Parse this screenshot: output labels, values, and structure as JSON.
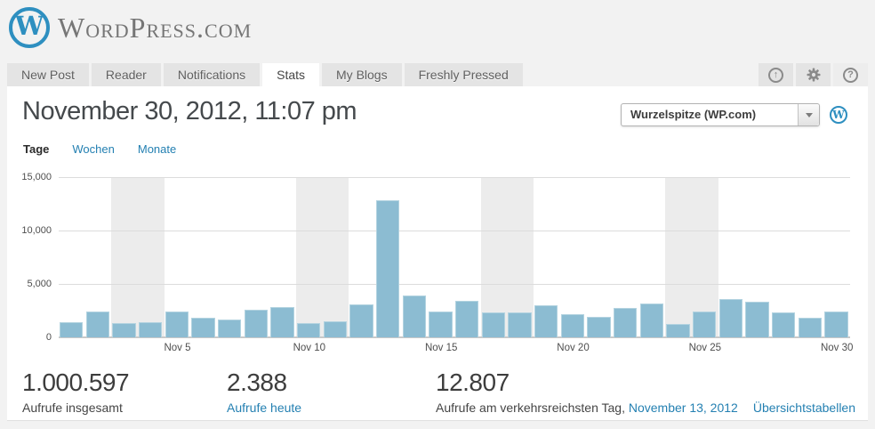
{
  "header": {
    "logo_initial": "W",
    "logo_text": "WordPress.com",
    "nav_tabs": [
      {
        "label": "New Post",
        "active": false
      },
      {
        "label": "Reader",
        "active": false
      },
      {
        "label": "Notifications",
        "active": false
      },
      {
        "label": "Stats",
        "active": true
      },
      {
        "label": "My Blogs",
        "active": false
      },
      {
        "label": "Freshly Pressed",
        "active": false
      }
    ],
    "icon_buttons": [
      "publish-icon",
      "gear-icon",
      "help-icon"
    ],
    "publish_glyph": "↑",
    "help_glyph": "?"
  },
  "page": {
    "title": "November 30, 2012, 11:07 pm",
    "blog_selector": {
      "value": "Wurzelspitze (WP.com)"
    },
    "view_tabs": [
      {
        "label": "Tage",
        "active": true
      },
      {
        "label": "Wochen",
        "active": false
      },
      {
        "label": "Monate",
        "active": false
      }
    ]
  },
  "chart_data": {
    "type": "bar",
    "title": "Views per day, November 2012",
    "xlabel": "",
    "ylabel": "",
    "categories": [
      "Nov 1",
      "Nov 2",
      "Nov 3",
      "Nov 4",
      "Nov 5",
      "Nov 6",
      "Nov 7",
      "Nov 8",
      "Nov 9",
      "Nov 10",
      "Nov 11",
      "Nov 12",
      "Nov 13",
      "Nov 14",
      "Nov 15",
      "Nov 16",
      "Nov 17",
      "Nov 18",
      "Nov 19",
      "Nov 20",
      "Nov 21",
      "Nov 22",
      "Nov 23",
      "Nov 24",
      "Nov 25",
      "Nov 26",
      "Nov 27",
      "Nov 28",
      "Nov 29",
      "Nov 30"
    ],
    "values": [
      1450,
      2450,
      1300,
      1450,
      2450,
      1800,
      1700,
      2550,
      2800,
      1350,
      1500,
      3100,
      12807,
      3900,
      2400,
      3400,
      2350,
      2300,
      3000,
      2200,
      1950,
      2750,
      3200,
      1250,
      2400,
      3550,
      3300,
      2350,
      1800,
      2388
    ],
    "ylim": [
      0,
      15000
    ],
    "ytick_values": [
      0,
      5000,
      10000,
      15000
    ],
    "ytick_labels": [
      "0",
      "5,000",
      "10,000",
      "15,000"
    ],
    "xtick_days": [
      5,
      10,
      15,
      20,
      25,
      30
    ],
    "xtick_labels": [
      "Nov 5",
      "Nov 10",
      "Nov 15",
      "Nov 20",
      "Nov 25",
      "Nov 30"
    ],
    "weekend_bands_days": [
      [
        3,
        4
      ],
      [
        10,
        11
      ],
      [
        17,
        18
      ],
      [
        24,
        25
      ]
    ],
    "grid": true,
    "legend": false,
    "bar_color": "#8cbcd2",
    "bar_border_color": "#b3d3e0",
    "band_color": "#ececec"
  },
  "summary": [
    {
      "value": "1.000.597",
      "label": "Aufrufe insgesamt"
    },
    {
      "value": "2.388",
      "label": "Aufrufe heute"
    },
    {
      "value": "12.807",
      "label_prefix": "Aufrufe am verkehrsreichsten Tag, ",
      "label_link": "November 13, 2012"
    }
  ],
  "overview_link": "Übersichtstabellen",
  "colors": {
    "link": "#2480b2",
    "logo_blue": "#2e8fc0",
    "bar": "#8cbcd2",
    "tab_gray": "#e4e4e4"
  }
}
